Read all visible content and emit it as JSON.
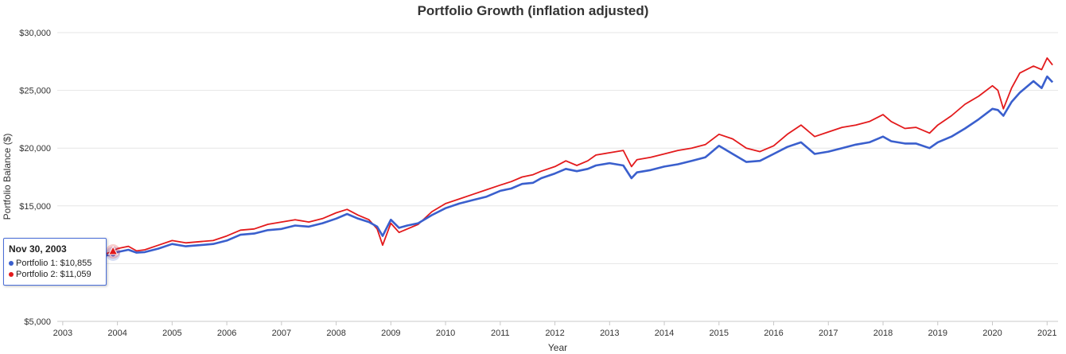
{
  "chart_data": {
    "type": "line",
    "title": "Portfolio Growth (inflation adjusted)",
    "xlabel": "Year",
    "ylabel": "Portfolio Balance ($)",
    "xlim": [
      2002.9,
      2021.2
    ],
    "ylim": [
      5000,
      30000
    ],
    "x_ticks": [
      2003,
      2004,
      2005,
      2006,
      2007,
      2008,
      2009,
      2010,
      2011,
      2012,
      2013,
      2014,
      2015,
      2016,
      2017,
      2018,
      2019,
      2020,
      2021
    ],
    "y_ticks": [
      5000,
      10000,
      15000,
      20000,
      25000,
      30000
    ],
    "y_tick_labels": [
      "$5,000",
      "$10,000",
      "$15,000",
      "$20,000",
      "$25,000",
      "$30,000"
    ],
    "grid": true,
    "series": [
      {
        "name": "Portfolio 1",
        "color": "#3a5fcd",
        "x": [
          2003.3,
          2003.5,
          2003.75,
          2003.92,
          2004.0,
          2004.2,
          2004.35,
          2004.5,
          2004.75,
          2005.0,
          2005.25,
          2005.5,
          2005.75,
          2006.0,
          2006.25,
          2006.5,
          2006.75,
          2007.0,
          2007.25,
          2007.5,
          2007.75,
          2008.0,
          2008.2,
          2008.4,
          2008.6,
          2008.75,
          2008.85,
          2009.0,
          2009.15,
          2009.3,
          2009.5,
          2009.75,
          2010.0,
          2010.25,
          2010.5,
          2010.75,
          2011.0,
          2011.2,
          2011.4,
          2011.6,
          2011.75,
          2012.0,
          2012.2,
          2012.4,
          2012.6,
          2012.75,
          2013.0,
          2013.25,
          2013.4,
          2013.5,
          2013.75,
          2014.0,
          2014.25,
          2014.5,
          2014.75,
          2015.0,
          2015.25,
          2015.5,
          2015.75,
          2016.0,
          2016.25,
          2016.5,
          2016.75,
          2017.0,
          2017.25,
          2017.5,
          2017.75,
          2018.0,
          2018.15,
          2018.4,
          2018.6,
          2018.85,
          2019.0,
          2019.25,
          2019.5,
          2019.75,
          2020.0,
          2020.1,
          2020.2,
          2020.35,
          2020.5,
          2020.75,
          2020.9,
          2021.0,
          2021.1
        ],
        "y": [
          10200,
          10400,
          10650,
          10855,
          11000,
          11200,
          10950,
          11000,
          11300,
          11700,
          11500,
          11600,
          11700,
          12000,
          12500,
          12600,
          12900,
          13000,
          13300,
          13200,
          13500,
          13900,
          14300,
          13900,
          13600,
          13200,
          12400,
          13800,
          13100,
          13300,
          13500,
          14200,
          14800,
          15200,
          15500,
          15800,
          16300,
          16500,
          16900,
          17000,
          17400,
          17800,
          18200,
          18000,
          18200,
          18500,
          18700,
          18500,
          17400,
          17900,
          18100,
          18400,
          18600,
          18900,
          19200,
          20200,
          19500,
          18800,
          18900,
          19500,
          20100,
          20500,
          19500,
          19700,
          20000,
          20300,
          20500,
          21000,
          20600,
          20400,
          20400,
          20000,
          20500,
          21000,
          21700,
          22500,
          23400,
          23300,
          22800,
          24000,
          24800,
          25800,
          25200,
          26200,
          25700
        ]
      },
      {
        "name": "Portfolio 2",
        "color": "#e31a1c",
        "x": [
          2003.3,
          2003.5,
          2003.75,
          2003.92,
          2004.0,
          2004.2,
          2004.35,
          2004.5,
          2004.75,
          2005.0,
          2005.25,
          2005.5,
          2005.75,
          2006.0,
          2006.25,
          2006.5,
          2006.75,
          2007.0,
          2007.25,
          2007.5,
          2007.75,
          2008.0,
          2008.2,
          2008.4,
          2008.6,
          2008.75,
          2008.85,
          2009.0,
          2009.15,
          2009.3,
          2009.5,
          2009.75,
          2010.0,
          2010.25,
          2010.5,
          2010.75,
          2011.0,
          2011.2,
          2011.4,
          2011.6,
          2011.75,
          2012.0,
          2012.2,
          2012.4,
          2012.6,
          2012.75,
          2013.0,
          2013.25,
          2013.4,
          2013.5,
          2013.75,
          2014.0,
          2014.25,
          2014.5,
          2014.75,
          2015.0,
          2015.25,
          2015.5,
          2015.75,
          2016.0,
          2016.25,
          2016.5,
          2016.75,
          2017.0,
          2017.25,
          2017.5,
          2017.75,
          2018.0,
          2018.15,
          2018.4,
          2018.6,
          2018.85,
          2019.0,
          2019.25,
          2019.5,
          2019.75,
          2020.0,
          2020.1,
          2020.2,
          2020.35,
          2020.5,
          2020.75,
          2020.9,
          2021.0,
          2021.1
        ],
        "y": [
          10300,
          10500,
          10800,
          11059,
          11300,
          11500,
          11100,
          11200,
          11600,
          12000,
          11800,
          11900,
          12000,
          12400,
          12900,
          13000,
          13400,
          13600,
          13800,
          13600,
          13900,
          14400,
          14700,
          14200,
          13800,
          13000,
          11600,
          13500,
          12700,
          13000,
          13400,
          14500,
          15200,
          15600,
          16000,
          16400,
          16800,
          17100,
          17500,
          17700,
          18000,
          18400,
          18900,
          18500,
          18900,
          19400,
          19600,
          19800,
          18400,
          19000,
          19200,
          19500,
          19800,
          20000,
          20300,
          21200,
          20800,
          20000,
          19700,
          20200,
          21200,
          22000,
          21000,
          21400,
          21800,
          22000,
          22300,
          22900,
          22300,
          21700,
          21800,
          21300,
          22000,
          22800,
          23800,
          24500,
          25400,
          25000,
          23400,
          25200,
          26500,
          27100,
          26800,
          27800,
          27200
        ]
      }
    ],
    "tooltip": {
      "date": "Nov 30, 2003",
      "rows": [
        {
          "label": "Portfolio 1: $10,855",
          "color": "#3a5fcd"
        },
        {
          "label": "Portfolio 2: $11,059",
          "color": "#e31a1c"
        }
      ],
      "x": 2003.92
    }
  }
}
